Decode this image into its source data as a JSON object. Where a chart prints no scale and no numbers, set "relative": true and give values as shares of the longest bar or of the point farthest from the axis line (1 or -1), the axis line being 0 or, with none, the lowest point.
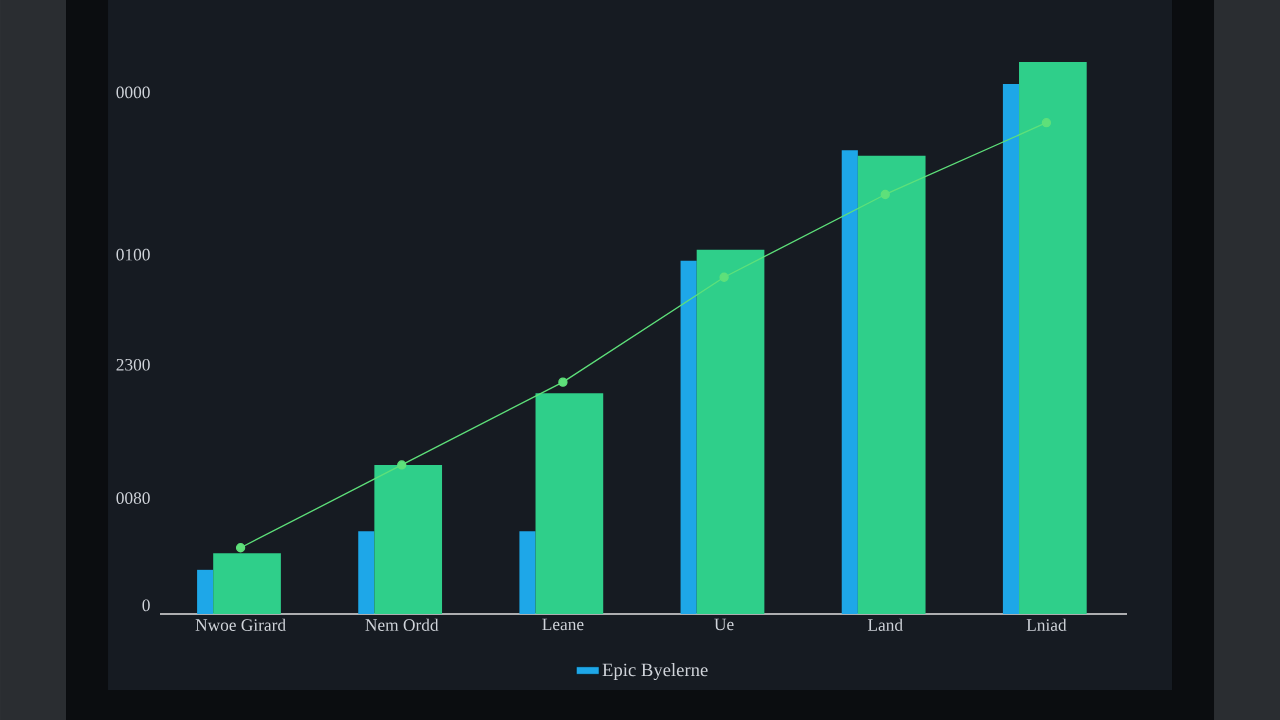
{
  "chart_data": {
    "type": "bar",
    "relative": true,
    "categories": [
      "Nwoe Girard",
      "Nem Ordd",
      "Leane",
      "Ue",
      "Land",
      "Lniad"
    ],
    "series": [
      {
        "name": "Epic Byelerne",
        "color": "#1ea7e8",
        "values": [
          0.08,
          0.15,
          0.15,
          0.64,
          0.84,
          0.96
        ]
      },
      {
        "color": "#2fcf8a",
        "values": [
          0.11,
          0.27,
          0.4,
          0.66,
          0.83,
          1
        ]
      },
      {
        "type": "line",
        "color": "#5ee07a",
        "marker": "circle",
        "values": [
          0.12,
          0.27,
          0.42,
          0.61,
          0.76,
          0.89
        ]
      }
    ],
    "annotations": [
      "0000",
      "0100",
      "2300",
      "0080",
      "0"
    ],
    "legend": "bottom"
  }
}
